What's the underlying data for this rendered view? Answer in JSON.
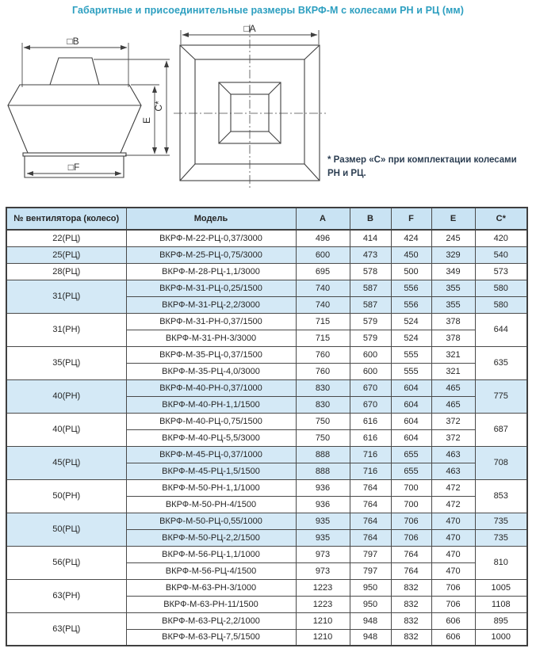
{
  "page": {
    "title": "Габаритные и присоединительные размеры ВКРФ-М с колесами РН и РЦ (мм)"
  },
  "note": {
    "line1": "* Размер «С» при комплектации колесами",
    "line2": "РН и РЦ."
  },
  "diagram": {
    "label_a": "□A",
    "label_b": "□B",
    "label_f": "□F",
    "label_e": "E",
    "label_c": "C*"
  },
  "colors": {
    "accent_title": "#2d9fc0",
    "shade_row": "#d4e9f6",
    "shade_header": "#c9e3f3",
    "line": "#3f3f3f"
  },
  "table": {
    "headers": [
      "№ вентилятора (колесо)",
      "Модель",
      "A",
      "B",
      "F",
      "E",
      "C*"
    ],
    "groups": [
      {
        "wheel": "22(РЦ)",
        "shade": false,
        "rows": [
          {
            "model": "ВКРФ-М-22-РЦ-0,37/3000",
            "a": "496",
            "b": "414",
            "f": "424",
            "e": "245",
            "c": "420"
          }
        ]
      },
      {
        "wheel": "25(РЦ)",
        "shade": true,
        "rows": [
          {
            "model": "ВКРФ-М-25-РЦ-0,75/3000",
            "a": "600",
            "b": "473",
            "f": "450",
            "e": "329",
            "c": "540"
          }
        ]
      },
      {
        "wheel": "28(РЦ)",
        "shade": false,
        "rows": [
          {
            "model": "ВКРФ-М-28-РЦ-1,1/3000",
            "a": "695",
            "b": "578",
            "f": "500",
            "e": "349",
            "c": "573"
          }
        ]
      },
      {
        "wheel": "31(РЦ)",
        "shade": true,
        "rows": [
          {
            "model": "ВКРФ-М-31-РЦ-0,25/1500",
            "a": "740",
            "b": "587",
            "f": "556",
            "e": "355",
            "c": "580"
          },
          {
            "model": "ВКРФ-М-31-РЦ-2,2/3000",
            "a": "740",
            "b": "587",
            "f": "556",
            "e": "355",
            "c": "580"
          }
        ]
      },
      {
        "wheel": "31(РН)",
        "shade": false,
        "c_merged": "644",
        "c_border_bottom": false,
        "rows": [
          {
            "model": "ВКРФ-М-31-РН-0,37/1500",
            "a": "715",
            "b": "579",
            "f": "524",
            "e": "378"
          },
          {
            "model": "ВКРФ-М-31-РН-3/3000",
            "a": "715",
            "b": "579",
            "f": "524",
            "e": "378"
          }
        ]
      },
      {
        "wheel": "35(РЦ)",
        "shade": false,
        "c_merged": "635",
        "c_border_top": false,
        "rows": [
          {
            "model": "ВКРФ-М-35-РЦ-0,37/1500",
            "a": "760",
            "b": "600",
            "f": "555",
            "e": "321"
          },
          {
            "model": "ВКРФ-М-35-РЦ-4,0/3000",
            "a": "760",
            "b": "600",
            "f": "555",
            "e": "321"
          }
        ]
      },
      {
        "wheel": "40(РН)",
        "shade": true,
        "c_merged": "775",
        "rows": [
          {
            "model": "ВКРФ-М-40-РН-0,37/1000",
            "a": "830",
            "b": "670",
            "f": "604",
            "e": "465"
          },
          {
            "model": "ВКРФ-М-40-РН-1,1/1500",
            "a": "830",
            "b": "670",
            "f": "604",
            "e": "465"
          }
        ]
      },
      {
        "wheel": "40(РЦ)",
        "shade": false,
        "c_merged": "687",
        "rows": [
          {
            "model": "ВКРФ-М-40-РЦ-0,75/1500",
            "a": "750",
            "b": "616",
            "f": "604",
            "e": "372"
          },
          {
            "model": "ВКРФ-М-40-РЦ-5,5/3000",
            "a": "750",
            "b": "616",
            "f": "604",
            "e": "372"
          }
        ]
      },
      {
        "wheel": "45(РЦ)",
        "shade": true,
        "c_merged": "708",
        "rows": [
          {
            "model": "ВКРФ-М-45-РЦ-0,37/1000",
            "a": "888",
            "b": "716",
            "f": "655",
            "e": "463"
          },
          {
            "model": "ВКРФ-М-45-РЦ-1,5/1500",
            "a": "888",
            "b": "716",
            "f": "655",
            "e": "463"
          }
        ]
      },
      {
        "wheel": "50(РН)",
        "shade": false,
        "c_merged": "853",
        "rows": [
          {
            "model": "ВКРФ-М-50-РН-1,1/1000",
            "a": "936",
            "b": "764",
            "f": "700",
            "e": "472"
          },
          {
            "model": "ВКРФ-М-50-РН-4/1500",
            "a": "936",
            "b": "764",
            "f": "700",
            "e": "472"
          }
        ]
      },
      {
        "wheel": "50(РЦ)",
        "shade": true,
        "rows": [
          {
            "model": "ВКРФ-М-50-РЦ-0,55/1000",
            "a": "935",
            "b": "764",
            "f": "706",
            "e": "470",
            "c": "735"
          },
          {
            "model": "ВКРФ-М-50-РЦ-2,2/1500",
            "a": "935",
            "b": "764",
            "f": "706",
            "e": "470",
            "c": "735"
          }
        ]
      },
      {
        "wheel": "56(РЦ)",
        "shade": false,
        "c_merged": "810",
        "rows": [
          {
            "model": "ВКРФ-М-56-РЦ-1,1/1000",
            "a": "973",
            "b": "797",
            "f": "764",
            "e": "470"
          },
          {
            "model": "ВКРФ-М-56-РЦ-4/1500",
            "a": "973",
            "b": "797",
            "f": "764",
            "e": "470"
          }
        ]
      },
      {
        "wheel": "63(РН)",
        "shade": false,
        "rows": [
          {
            "model": "ВКРФ-М-63-РН-3/1000",
            "a": "1223",
            "b": "950",
            "f": "832",
            "e": "706",
            "c": "1005"
          },
          {
            "model": "ВКРФ-М-63-РН-11/1500",
            "a": "1223",
            "b": "950",
            "f": "832",
            "e": "706",
            "c": "1108"
          }
        ]
      },
      {
        "wheel": "63(РЦ)",
        "shade": false,
        "rows": [
          {
            "model": "ВКРФ-М-63-РЦ-2,2/1000",
            "a": "1210",
            "b": "948",
            "f": "832",
            "e": "606",
            "c": "895"
          },
          {
            "model": "ВКРФ-М-63-РЦ-7,5/1500",
            "a": "1210",
            "b": "948",
            "f": "832",
            "e": "606",
            "c": "1000"
          }
        ]
      }
    ]
  }
}
